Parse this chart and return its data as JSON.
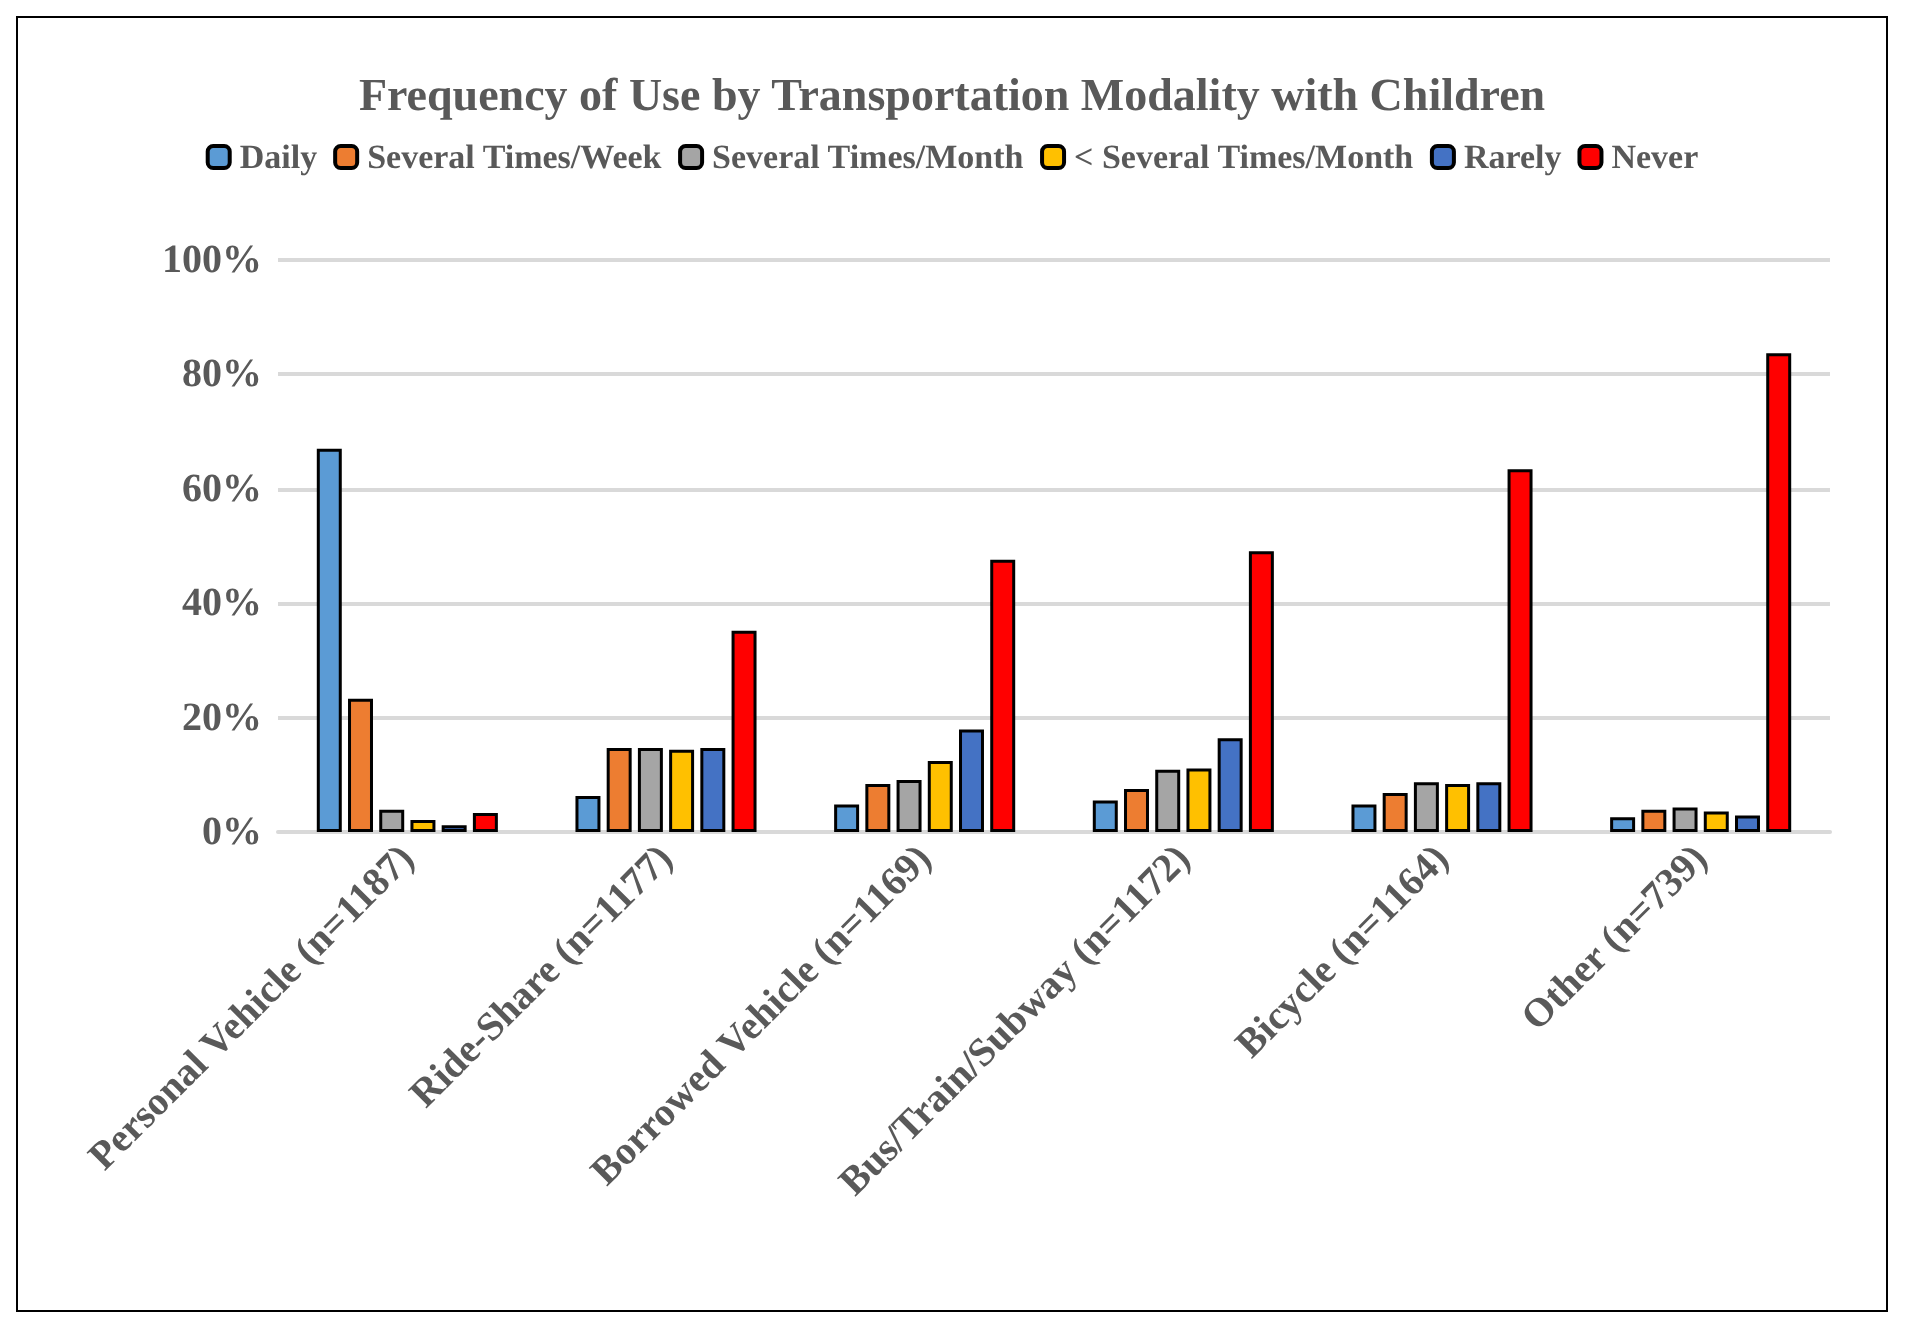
{
  "chart_data": {
    "type": "bar",
    "title": "Frequency of Use by Transportation Modality with Children",
    "categories": [
      "Personal Vehicle (n=1187)",
      "Ride-Share (n=1177)",
      "Borrowed Vehicle (n=1169)",
      "Bus/Train/Subway (n=1172)",
      "Bicycle (n=1164)",
      "Other (n=739)"
    ],
    "series": [
      {
        "name": "Daily",
        "color": "#5b9bd5",
        "values": [
          67.0,
          6.3,
          4.8,
          5.5,
          4.8,
          2.6
        ]
      },
      {
        "name": "Several Times/Week",
        "color": "#ed7d31",
        "values": [
          23.3,
          14.7,
          8.4,
          7.5,
          6.8,
          3.9
        ]
      },
      {
        "name": "Several Times/Month",
        "color": "#a5a5a5",
        "values": [
          3.9,
          14.7,
          9.1,
          10.9,
          8.7,
          4.3
        ]
      },
      {
        "name": "< Several Times/Month",
        "color": "#ffc000",
        "values": [
          2.1,
          14.4,
          12.4,
          11.1,
          8.4,
          3.6
        ]
      },
      {
        "name": "Rarely",
        "color": "#4472c4",
        "values": [
          1.2,
          14.7,
          17.9,
          16.4,
          8.7,
          2.9
        ]
      },
      {
        "name": "Never",
        "color": "#ff0000",
        "values": [
          3.3,
          35.2,
          47.6,
          49.1,
          63.4,
          83.7
        ]
      }
    ],
    "ylim": [
      0,
      100
    ],
    "yticks": [
      {
        "value": 0,
        "label": "0%"
      },
      {
        "value": 20,
        "label": "20%"
      },
      {
        "value": 40,
        "label": "40%"
      },
      {
        "value": 60,
        "label": "60%"
      },
      {
        "value": 80,
        "label": "80%"
      },
      {
        "value": 100,
        "label": "100%"
      }
    ],
    "grid": "y",
    "legend": "top"
  }
}
